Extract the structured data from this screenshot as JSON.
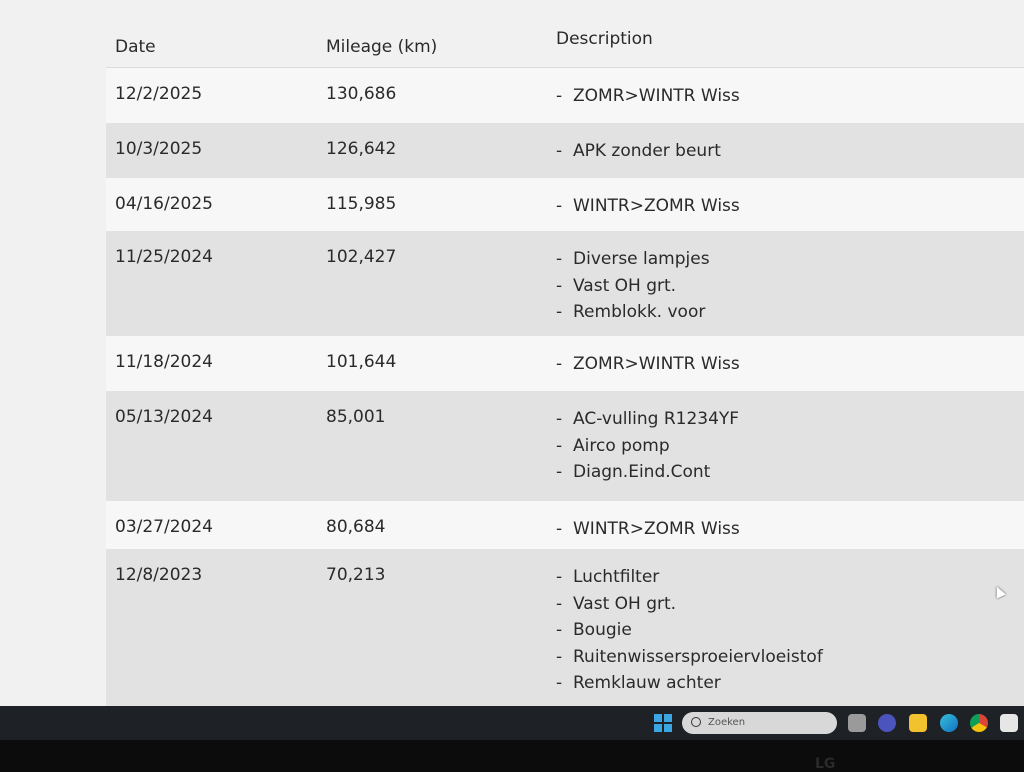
{
  "table": {
    "headers": {
      "date": "Date",
      "mileage": "Mileage (km)",
      "description": "Description"
    },
    "rows": [
      {
        "date": "12/2/2025",
        "mileage": "130,686",
        "items": [
          "ZOMR>WINTR Wiss"
        ]
      },
      {
        "date": "10/3/2025",
        "mileage": "126,642",
        "items": [
          "APK zonder beurt"
        ]
      },
      {
        "date": "04/16/2025",
        "mileage": "115,985",
        "items": [
          "WINTR>ZOMR Wiss"
        ]
      },
      {
        "date": "11/25/2024",
        "mileage": "102,427",
        "items": [
          "Diverse lampjes",
          "Vast OH grt.",
          "Remblokk. voor"
        ]
      },
      {
        "date": "11/18/2024",
        "mileage": "101,644",
        "items": [
          "ZOMR>WINTR Wiss"
        ]
      },
      {
        "date": "05/13/2024",
        "mileage": "85,001",
        "items": [
          "AC-vulling R1234YF",
          "Airco pomp",
          "Diagn.Eind.Cont"
        ]
      },
      {
        "date": "03/27/2024",
        "mileage": "80,684",
        "items": [
          "WINTR>ZOMR Wiss"
        ]
      },
      {
        "date": "12/8/2023",
        "mileage": "70,213",
        "items": [
          "Luchtfilter",
          "Vast OH grt.",
          "Bougie",
          "Ruitenwissersproeiervloeistof",
          "Remklauw achter"
        ]
      }
    ]
  },
  "taskbar": {
    "search_placeholder": "Zoeken",
    "icons": [
      "windows-start-icon",
      "task-view-icon",
      "teams-icon",
      "file-explorer-icon",
      "edge-icon",
      "chrome-icon",
      "store-icon"
    ]
  },
  "bezel": {
    "logo": "LG"
  }
}
